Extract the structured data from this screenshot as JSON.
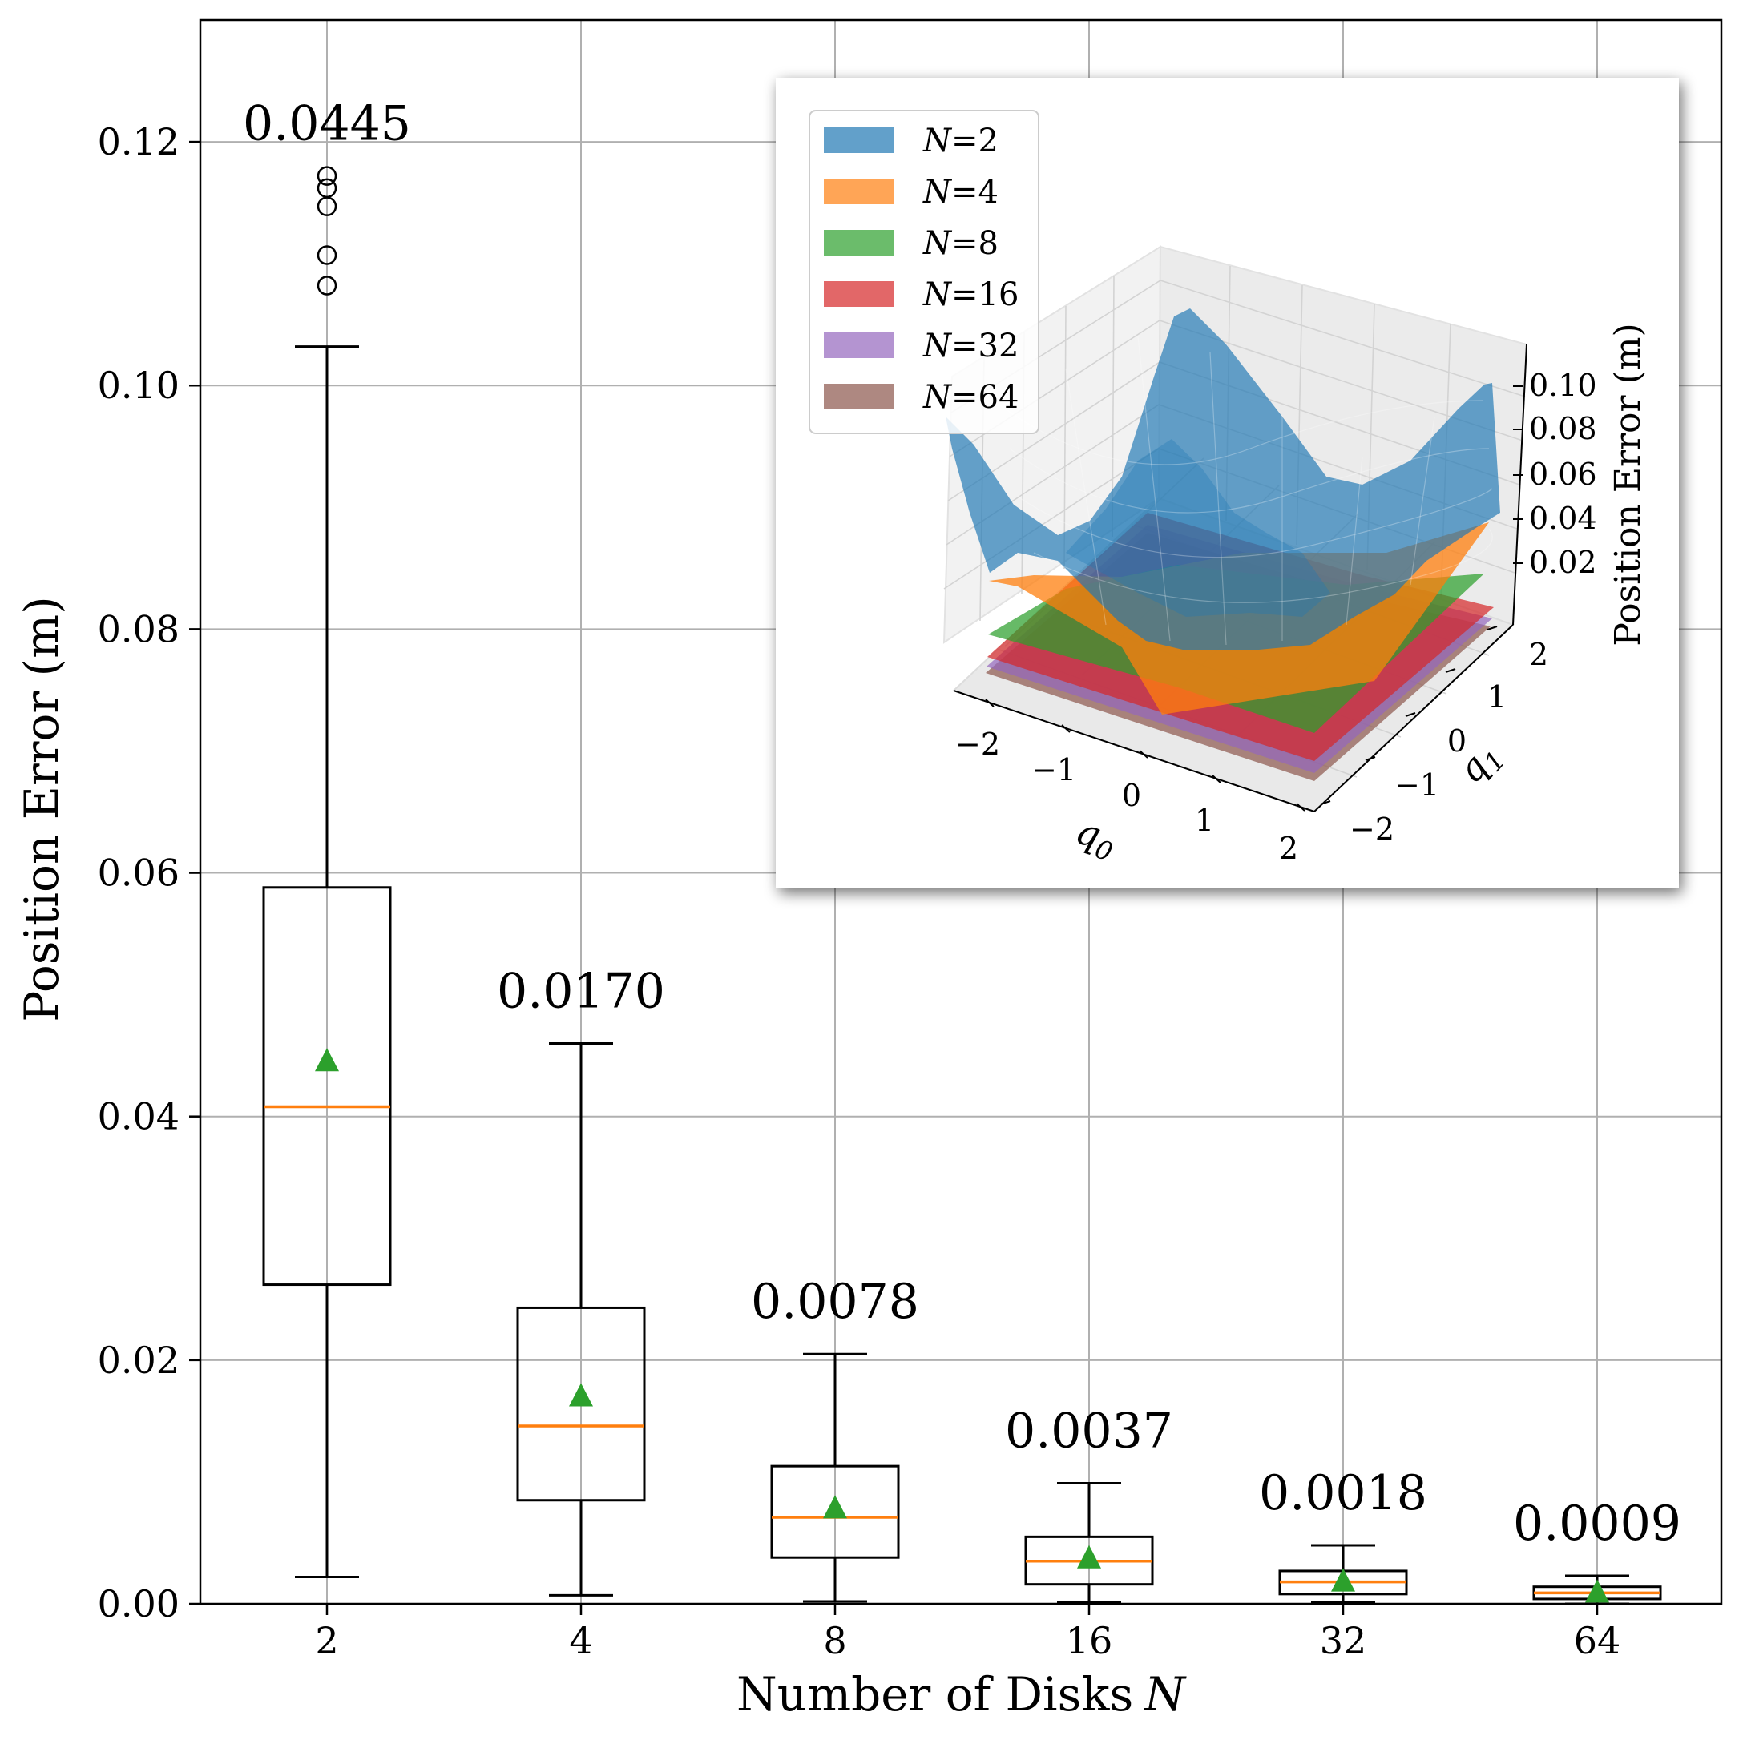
{
  "chart_data": [
    {
      "type": "box",
      "title": "",
      "xlabel": "Number of Disks",
      "xlabel_var": "N",
      "ylabel": "Position Error (m)",
      "categories": [
        "2",
        "4",
        "8",
        "16",
        "32",
        "64"
      ],
      "ylim": [
        0,
        0.13
      ],
      "yticks": [
        "0.00",
        "0.02",
        "0.04",
        "0.06",
        "0.08",
        "0.10",
        "0.12"
      ],
      "grid": true,
      "colors": {
        "box": "#000000",
        "median": "#ff7f0e",
        "mean_marker": "#2ca02c",
        "grid": "#b0b0b0"
      },
      "boxes": [
        {
          "category": "2",
          "whisker_low": 0.0022,
          "q1": 0.0262,
          "median": 0.0408,
          "q3": 0.0588,
          "whisker_high": 0.1032,
          "mean": 0.0445,
          "mean_label": "0.0445",
          "outliers": [
            0.1082,
            0.1107,
            0.1147,
            0.1162,
            0.1172
          ]
        },
        {
          "category": "4",
          "whisker_low": 0.0007,
          "q1": 0.0085,
          "median": 0.0146,
          "q3": 0.0243,
          "whisker_high": 0.046,
          "mean": 0.017,
          "mean_label": "0.0170",
          "outliers": []
        },
        {
          "category": "8",
          "whisker_low": 0.0002,
          "q1": 0.0038,
          "median": 0.0071,
          "q3": 0.0113,
          "whisker_high": 0.0205,
          "mean": 0.0078,
          "mean_label": "0.0078",
          "outliers": []
        },
        {
          "category": "16",
          "whisker_low": 0.0001,
          "q1": 0.0016,
          "median": 0.0035,
          "q3": 0.0055,
          "whisker_high": 0.0099,
          "mean": 0.0037,
          "mean_label": "0.0037",
          "outliers": []
        },
        {
          "category": "32",
          "whisker_low": 0.0001,
          "q1": 0.0008,
          "median": 0.0018,
          "q3": 0.0027,
          "whisker_high": 0.0048,
          "mean": 0.0018,
          "mean_label": "0.0018",
          "outliers": []
        },
        {
          "category": "64",
          "whisker_low": 0.0,
          "q1": 0.0004,
          "median": 0.0009,
          "q3": 0.0014,
          "whisker_high": 0.0023,
          "mean": 0.0009,
          "mean_label": "0.0009",
          "outliers": []
        }
      ]
    },
    {
      "type": "surface",
      "title": "",
      "xlabel": "q",
      "xlabel_sub": "0",
      "ylabel": "q",
      "ylabel_sub": "1",
      "zlabel": "Position Error (m)",
      "xticks": [
        "−2",
        "−1",
        "0",
        "1",
        "2"
      ],
      "yticks": [
        "−2",
        "−1",
        "0",
        "1",
        "2"
      ],
      "zticks": [
        "0.02",
        "0.04",
        "0.06",
        "0.08",
        "0.10"
      ],
      "legend_position": "top-left",
      "series": [
        {
          "name": "N=2",
          "var": "N",
          "eq": "=2",
          "color": "#1f77b4"
        },
        {
          "name": "N=4",
          "var": "N",
          "eq": "=4",
          "color": "#ff7f0e"
        },
        {
          "name": "N=8",
          "var": "N",
          "eq": "=8",
          "color": "#2ca02c"
        },
        {
          "name": "N=16",
          "var": "N",
          "eq": "=16",
          "color": "#d62728"
        },
        {
          "name": "N=32",
          "var": "N",
          "eq": "=32",
          "color": "#9467bd"
        },
        {
          "name": "N=64",
          "var": "N",
          "eq": "=64",
          "color": "#8c564b"
        }
      ]
    }
  ]
}
